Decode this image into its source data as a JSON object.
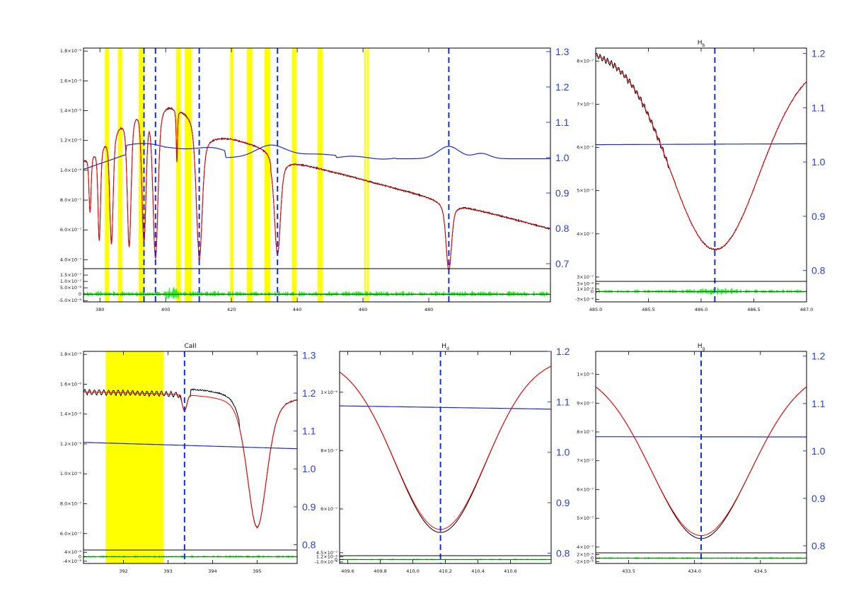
{
  "colors": {
    "data": "#000000",
    "model": "#ff0000",
    "continuum": "#1a2bd0",
    "highlight": "#ffff00",
    "residual": "#22ee22",
    "axis_right": "#2a3cd8",
    "line_marker": "#1030e0"
  },
  "chart_data": [
    {
      "id": "full",
      "type": "line",
      "title": "",
      "x": {
        "range": [
          375,
          517
        ],
        "ticks": [
          380,
          400,
          420,
          440,
          460,
          480
        ]
      },
      "y": {
        "range": [
          3.4e-07,
          1.82e-06
        ],
        "tick_values": [
          4e-07,
          6e-07,
          8e-07,
          1e-06,
          1.2e-06,
          1.4e-06,
          1.6e-06,
          1.8e-06
        ],
        "tick_labels": [
          "4.0×10⁻⁷",
          "6.0×10⁻⁷",
          "8.0×10⁻⁷",
          "1.0×10⁻⁶",
          "1.2×10⁻⁶",
          "1.4×10⁻⁶",
          "1.6×10⁻⁶",
          "1.8×10⁻⁶"
        ]
      },
      "y2": {
        "range": [
          0.686,
          1.31
        ],
        "ticks": [
          "0.7",
          "0.8",
          "0.9",
          "1.0",
          "1.1",
          "1.2",
          "1.3"
        ]
      },
      "res": {
        "range": [
          -6e-08,
          2e-07
        ],
        "tick_values": [
          -5e-08,
          0,
          5e-08,
          1e-07,
          1.5e-07
        ],
        "tick_labels": [
          "-5.0×10⁻⁸",
          "0",
          "5.0×10⁻⁸",
          "1.0×10⁻⁷",
          "1.5×10⁻⁷"
        ]
      },
      "markers": [
        393.4,
        396.9,
        410.2,
        434.0,
        486.1
      ],
      "bands": [
        [
          381.5,
          382.8
        ],
        [
          385.5,
          386.8
        ],
        [
          391.8,
          393.6
        ],
        [
          403.2,
          404.6
        ],
        [
          405.8,
          407.9
        ],
        [
          419.6,
          420.6
        ],
        [
          424.7,
          426.4
        ],
        [
          430.0,
          431.8
        ],
        [
          438.4,
          439.8
        ],
        [
          446.2,
          447.8
        ],
        [
          460.4,
          460.9
        ],
        [
          461.3,
          461.8
        ]
      ],
      "lines": [
        [
          377.0,
          0.18
        ],
        [
          379.8,
          0.22
        ],
        [
          383.5,
          0.26
        ],
        [
          388.9,
          0.32
        ],
        [
          393.4,
          0.3
        ],
        [
          396.9,
          0.45
        ],
        [
          403.4,
          0.12
        ],
        [
          410.2,
          0.62
        ],
        [
          434.0,
          0.7
        ],
        [
          486.1,
          0.85
        ]
      ]
    },
    {
      "id": "hb",
      "type": "line",
      "title": "H_b",
      "title_main": "H",
      "title_sub": "b",
      "x": {
        "range": [
          485.0,
          487.0
        ],
        "ticks": [
          "485.0",
          "485.5",
          "486.0",
          "486.5",
          "487.0"
        ]
      },
      "y": {
        "range": [
          2.9e-07,
          8.3e-07
        ],
        "tick_values": [
          3e-07,
          4e-07,
          5e-07,
          6e-07,
          7e-07,
          8e-07
        ],
        "tick_labels": [
          "3×10⁻⁷",
          "4×10⁻⁷",
          "5×10⁻⁷",
          "6×10⁻⁷",
          "7×10⁻⁷",
          "8×10⁻⁷"
        ]
      },
      "y2": {
        "range": [
          0.78,
          1.21
        ],
        "ticks": [
          "0.8",
          "0.9",
          "1.0",
          "1.1",
          "1.2"
        ]
      },
      "res": {
        "range": [
          -4e-08,
          4e-08
        ],
        "tick_values": [
          -3e-08,
          0,
          1e-08,
          3e-08
        ],
        "tick_labels": [
          "-3×10⁻⁸",
          "0",
          "1×10⁻⁸",
          "3×10⁻⁸"
        ]
      },
      "markers": [
        486.13
      ]
    },
    {
      "id": "caii",
      "type": "line",
      "title": "CaII",
      "x": {
        "range": [
          391.1,
          395.9
        ],
        "ticks": [
          "392",
          "393",
          "394",
          "395"
        ]
      },
      "y": {
        "range": [
          4.9e-07,
          1.82e-06
        ],
        "tick_values": [
          6e-07,
          8e-07,
          1e-06,
          1.2e-06,
          1.4e-06,
          1.6e-06,
          1.8e-06
        ],
        "tick_labels": [
          "6.0×10⁻⁷",
          "8.0×10⁻⁷",
          "1.0×10⁻⁶",
          "1.2×10⁻⁶",
          "1.4×10⁻⁶",
          "1.6×10⁻⁶",
          "1.8×10⁻⁶"
        ]
      },
      "y2": {
        "range": [
          0.786,
          1.31
        ],
        "ticks": [
          "0.8",
          "0.9",
          "1.0",
          "1.1",
          "1.2",
          "1.3"
        ]
      },
      "res": {
        "range": [
          -6e-08,
          6e-08
        ],
        "tick_values": [
          -4e-08,
          0,
          4e-08
        ],
        "tick_labels": [
          "-4×10⁻⁸",
          "0",
          "4×10⁻⁸"
        ]
      },
      "markers": [
        393.37,
        396.85
      ],
      "bands": [
        [
          391.6,
          392.9
        ]
      ]
    },
    {
      "id": "hd",
      "type": "line",
      "title": "H_d",
      "title_main": "H",
      "title_sub": "d",
      "x": {
        "range": [
          409.55,
          410.85
        ],
        "ticks": [
          "409.6",
          "409.8",
          "410.0",
          "410.2",
          "410.4",
          "410.6"
        ]
      },
      "y": {
        "range": [
          4.4e-07,
          1.14e-06
        ],
        "tick_values": [
          4.5e-07,
          6e-07,
          8e-07,
          1e-06
        ],
        "tick_labels": [
          "4.5×10⁻⁷",
          "6×10⁻⁷",
          "8×10⁻⁷",
          "1×10⁻⁶"
        ]
      },
      "y2": {
        "range": [
          0.795,
          1.2
        ],
        "ticks": [
          "0.8",
          "0.9",
          "1.0",
          "1.1",
          "1.2"
        ]
      },
      "res": {
        "range": [
          -1.6e-08,
          1.6e-08
        ],
        "tick_values": [
          -1e-08,
          0,
          1.2e-08
        ],
        "tick_labels": [
          "-1.0×10⁻⁸",
          "0",
          "1.2×10⁻⁸"
        ]
      },
      "markers": [
        410.17
      ]
    },
    {
      "id": "hg",
      "type": "line",
      "title": "H_g",
      "title_main": "H",
      "title_sub": "g",
      "x": {
        "range": [
          433.25,
          434.85
        ],
        "ticks": [
          "433.5",
          "434.0",
          "434.5"
        ]
      },
      "y": {
        "range": [
          3.8e-07,
          1.08e-06
        ],
        "tick_values": [
          4e-07,
          5e-07,
          6e-07,
          7e-07,
          8e-07,
          9e-07,
          1e-06
        ],
        "tick_labels": [
          "4×10⁻⁷",
          "5×10⁻⁷",
          "6×10⁻⁷",
          "7×10⁻⁷",
          "8×10⁻⁷",
          "9×10⁻⁷",
          "1×10⁻⁶"
        ]
      },
      "y2": {
        "range": [
          0.785,
          1.21
        ],
        "ticks": [
          "0.8",
          "0.9",
          "1.0",
          "1.1",
          "1.2"
        ]
      },
      "res": {
        "range": [
          -3e-08,
          3e-08
        ],
        "tick_values": [
          -2e-08,
          0,
          2e-08
        ],
        "tick_labels": [
          "-2×10⁻⁸",
          "0",
          "2×10⁻⁸"
        ]
      },
      "markers": [
        434.05
      ]
    }
  ]
}
